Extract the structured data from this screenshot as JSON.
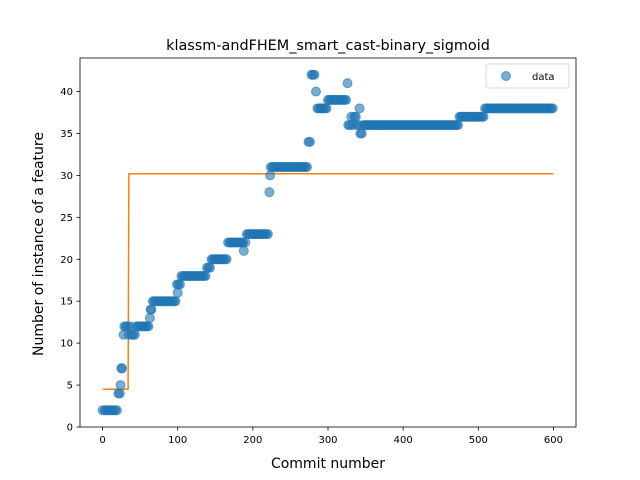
{
  "chart_data": {
    "type": "scatter",
    "title": "klassm-andFHEM_smart_cast-binary_sigmoid",
    "xlabel": "Commit number",
    "ylabel": "Number of instance of a feature",
    "xlim": [
      -30,
      630
    ],
    "ylim": [
      0,
      44
    ],
    "xticks": [
      0,
      100,
      200,
      300,
      400,
      500,
      600
    ],
    "yticks": [
      0,
      5,
      10,
      15,
      20,
      25,
      30,
      35,
      40
    ],
    "grid": false,
    "legend": {
      "position": "top-right",
      "entries": [
        "data"
      ]
    },
    "colors": {
      "data": "#1f77b4",
      "fit": "#ff7f0e"
    },
    "series": [
      {
        "name": "data",
        "kind": "scatter",
        "points": [
          [
            0,
            2
          ],
          [
            3,
            2
          ],
          [
            5,
            2
          ],
          [
            7,
            2
          ],
          [
            9,
            2
          ],
          [
            11,
            2
          ],
          [
            13,
            2
          ],
          [
            15,
            2
          ],
          [
            17,
            2
          ],
          [
            19,
            2
          ],
          [
            21,
            4
          ],
          [
            23,
            4
          ],
          [
            24,
            5
          ],
          [
            25,
            7
          ],
          [
            26,
            7
          ],
          [
            28,
            11
          ],
          [
            29,
            12
          ],
          [
            31,
            12
          ],
          [
            33,
            12
          ],
          [
            35,
            11
          ],
          [
            37,
            12
          ],
          [
            39,
            11
          ],
          [
            41,
            11
          ],
          [
            43,
            11
          ],
          [
            45,
            12
          ],
          [
            47,
            12
          ],
          [
            49,
            12
          ],
          [
            51,
            12
          ],
          [
            53,
            12
          ],
          [
            55,
            12
          ],
          [
            57,
            12
          ],
          [
            59,
            12
          ],
          [
            61,
            12
          ],
          [
            63,
            13
          ],
          [
            64,
            14
          ],
          [
            65,
            14
          ],
          [
            67,
            15
          ],
          [
            69,
            15
          ],
          [
            71,
            15
          ],
          [
            73,
            15
          ],
          [
            75,
            15
          ],
          [
            77,
            15
          ],
          [
            79,
            15
          ],
          [
            81,
            15
          ],
          [
            83,
            15
          ],
          [
            85,
            15
          ],
          [
            87,
            15
          ],
          [
            89,
            15
          ],
          [
            91,
            15
          ],
          [
            93,
            15
          ],
          [
            95,
            15
          ],
          [
            97,
            15
          ],
          [
            99,
            17
          ],
          [
            100,
            16
          ],
          [
            101,
            17
          ],
          [
            103,
            17
          ],
          [
            105,
            18
          ],
          [
            107,
            18
          ],
          [
            109,
            18
          ],
          [
            111,
            18
          ],
          [
            113,
            18
          ],
          [
            115,
            18
          ],
          [
            117,
            18
          ],
          [
            119,
            18
          ],
          [
            121,
            18
          ],
          [
            123,
            18
          ],
          [
            125,
            18
          ],
          [
            127,
            18
          ],
          [
            129,
            18
          ],
          [
            131,
            18
          ],
          [
            133,
            18
          ],
          [
            135,
            18
          ],
          [
            137,
            18
          ],
          [
            139,
            19
          ],
          [
            141,
            19
          ],
          [
            143,
            19
          ],
          [
            145,
            20
          ],
          [
            147,
            20
          ],
          [
            149,
            20
          ],
          [
            151,
            20
          ],
          [
            153,
            20
          ],
          [
            155,
            20
          ],
          [
            157,
            20
          ],
          [
            159,
            20
          ],
          [
            161,
            20
          ],
          [
            163,
            20
          ],
          [
            165,
            20
          ],
          [
            167,
            22
          ],
          [
            169,
            22
          ],
          [
            171,
            22
          ],
          [
            173,
            22
          ],
          [
            175,
            22
          ],
          [
            177,
            22
          ],
          [
            179,
            22
          ],
          [
            181,
            22
          ],
          [
            183,
            22
          ],
          [
            185,
            22
          ],
          [
            187,
            22
          ],
          [
            188,
            21
          ],
          [
            190,
            22
          ],
          [
            192,
            23
          ],
          [
            194,
            23
          ],
          [
            196,
            23
          ],
          [
            198,
            23
          ],
          [
            200,
            23
          ],
          [
            202,
            23
          ],
          [
            204,
            23
          ],
          [
            206,
            23
          ],
          [
            208,
            23
          ],
          [
            210,
            23
          ],
          [
            212,
            23
          ],
          [
            214,
            23
          ],
          [
            216,
            23
          ],
          [
            218,
            23
          ],
          [
            220,
            23
          ],
          [
            222,
            28
          ],
          [
            223,
            30
          ],
          [
            224,
            31
          ],
          [
            226,
            31
          ],
          [
            228,
            31
          ],
          [
            230,
            31
          ],
          [
            232,
            31
          ],
          [
            234,
            31
          ],
          [
            236,
            31
          ],
          [
            238,
            31
          ],
          [
            240,
            31
          ],
          [
            242,
            31
          ],
          [
            244,
            31
          ],
          [
            246,
            31
          ],
          [
            248,
            31
          ],
          [
            250,
            31
          ],
          [
            252,
            31
          ],
          [
            254,
            31
          ],
          [
            256,
            31
          ],
          [
            258,
            31
          ],
          [
            260,
            31
          ],
          [
            262,
            31
          ],
          [
            264,
            31
          ],
          [
            266,
            31
          ],
          [
            268,
            31
          ],
          [
            270,
            31
          ],
          [
            272,
            31
          ],
          [
            274,
            34
          ],
          [
            276,
            34
          ],
          [
            278,
            42
          ],
          [
            280,
            42
          ],
          [
            282,
            42
          ],
          [
            284,
            40
          ],
          [
            286,
            38
          ],
          [
            288,
            38
          ],
          [
            290,
            38
          ],
          [
            292,
            38
          ],
          [
            294,
            38
          ],
          [
            296,
            38
          ],
          [
            298,
            38
          ],
          [
            300,
            39
          ],
          [
            302,
            39
          ],
          [
            304,
            39
          ],
          [
            306,
            39
          ],
          [
            308,
            39
          ],
          [
            310,
            39
          ],
          [
            312,
            39
          ],
          [
            314,
            39
          ],
          [
            316,
            39
          ],
          [
            318,
            39
          ],
          [
            320,
            39
          ],
          [
            322,
            39
          ],
          [
            324,
            39
          ],
          [
            326,
            41
          ],
          [
            327,
            36
          ],
          [
            329,
            36
          ],
          [
            331,
            37
          ],
          [
            333,
            36
          ],
          [
            335,
            37
          ],
          [
            337,
            37
          ],
          [
            339,
            36
          ],
          [
            341,
            36
          ],
          [
            342,
            38
          ],
          [
            343,
            35
          ],
          [
            345,
            35
          ],
          [
            347,
            36
          ],
          [
            349,
            36
          ],
          [
            351,
            36
          ],
          [
            353,
            36
          ],
          [
            355,
            36
          ],
          [
            357,
            36
          ],
          [
            359,
            36
          ],
          [
            361,
            36
          ],
          [
            363,
            36
          ],
          [
            365,
            36
          ],
          [
            367,
            36
          ],
          [
            369,
            36
          ],
          [
            371,
            36
          ],
          [
            373,
            36
          ],
          [
            375,
            36
          ],
          [
            377,
            36
          ],
          [
            379,
            36
          ],
          [
            381,
            36
          ],
          [
            383,
            36
          ],
          [
            385,
            36
          ],
          [
            387,
            36
          ],
          [
            389,
            36
          ],
          [
            391,
            36
          ],
          [
            393,
            36
          ],
          [
            395,
            36
          ],
          [
            397,
            36
          ],
          [
            399,
            36
          ],
          [
            401,
            36
          ],
          [
            403,
            36
          ],
          [
            405,
            36
          ],
          [
            407,
            36
          ],
          [
            409,
            36
          ],
          [
            411,
            36
          ],
          [
            413,
            36
          ],
          [
            415,
            36
          ],
          [
            417,
            36
          ],
          [
            419,
            36
          ],
          [
            421,
            36
          ],
          [
            423,
            36
          ],
          [
            425,
            36
          ],
          [
            427,
            36
          ],
          [
            429,
            36
          ],
          [
            431,
            36
          ],
          [
            433,
            36
          ],
          [
            435,
            36
          ],
          [
            437,
            36
          ],
          [
            439,
            36
          ],
          [
            441,
            36
          ],
          [
            443,
            36
          ],
          [
            445,
            36
          ],
          [
            447,
            36
          ],
          [
            449,
            36
          ],
          [
            451,
            36
          ],
          [
            453,
            36
          ],
          [
            455,
            36
          ],
          [
            457,
            36
          ],
          [
            459,
            36
          ],
          [
            461,
            36
          ],
          [
            463,
            36
          ],
          [
            465,
            36
          ],
          [
            467,
            36
          ],
          [
            469,
            36
          ],
          [
            471,
            36
          ],
          [
            473,
            36
          ],
          [
            475,
            37
          ],
          [
            477,
            37
          ],
          [
            479,
            37
          ],
          [
            481,
            37
          ],
          [
            483,
            37
          ],
          [
            485,
            37
          ],
          [
            487,
            37
          ],
          [
            489,
            37
          ],
          [
            491,
            37
          ],
          [
            493,
            37
          ],
          [
            495,
            37
          ],
          [
            497,
            37
          ],
          [
            499,
            37
          ],
          [
            501,
            37
          ],
          [
            503,
            37
          ],
          [
            505,
            37
          ],
          [
            507,
            37
          ],
          [
            509,
            38
          ],
          [
            511,
            38
          ],
          [
            513,
            38
          ],
          [
            515,
            38
          ],
          [
            517,
            38
          ],
          [
            519,
            38
          ],
          [
            521,
            38
          ],
          [
            523,
            38
          ],
          [
            525,
            38
          ],
          [
            527,
            38
          ],
          [
            529,
            38
          ],
          [
            531,
            38
          ],
          [
            533,
            38
          ],
          [
            535,
            38
          ],
          [
            537,
            38
          ],
          [
            539,
            38
          ],
          [
            541,
            38
          ],
          [
            543,
            38
          ],
          [
            545,
            38
          ],
          [
            547,
            38
          ],
          [
            549,
            38
          ],
          [
            551,
            38
          ],
          [
            553,
            38
          ],
          [
            555,
            38
          ],
          [
            557,
            38
          ],
          [
            559,
            38
          ],
          [
            561,
            38
          ],
          [
            563,
            38
          ],
          [
            565,
            38
          ],
          [
            567,
            38
          ],
          [
            569,
            38
          ],
          [
            571,
            38
          ],
          [
            573,
            38
          ],
          [
            575,
            38
          ],
          [
            577,
            38
          ],
          [
            579,
            38
          ],
          [
            581,
            38
          ],
          [
            583,
            38
          ],
          [
            585,
            38
          ],
          [
            587,
            38
          ],
          [
            589,
            38
          ],
          [
            591,
            38
          ],
          [
            593,
            38
          ],
          [
            595,
            38
          ],
          [
            597,
            38
          ],
          [
            599,
            38
          ]
        ]
      },
      {
        "kind": "line",
        "points": [
          [
            0,
            4.5
          ],
          [
            34,
            4.5
          ],
          [
            35,
            30.2
          ],
          [
            600,
            30.2
          ]
        ]
      }
    ]
  }
}
